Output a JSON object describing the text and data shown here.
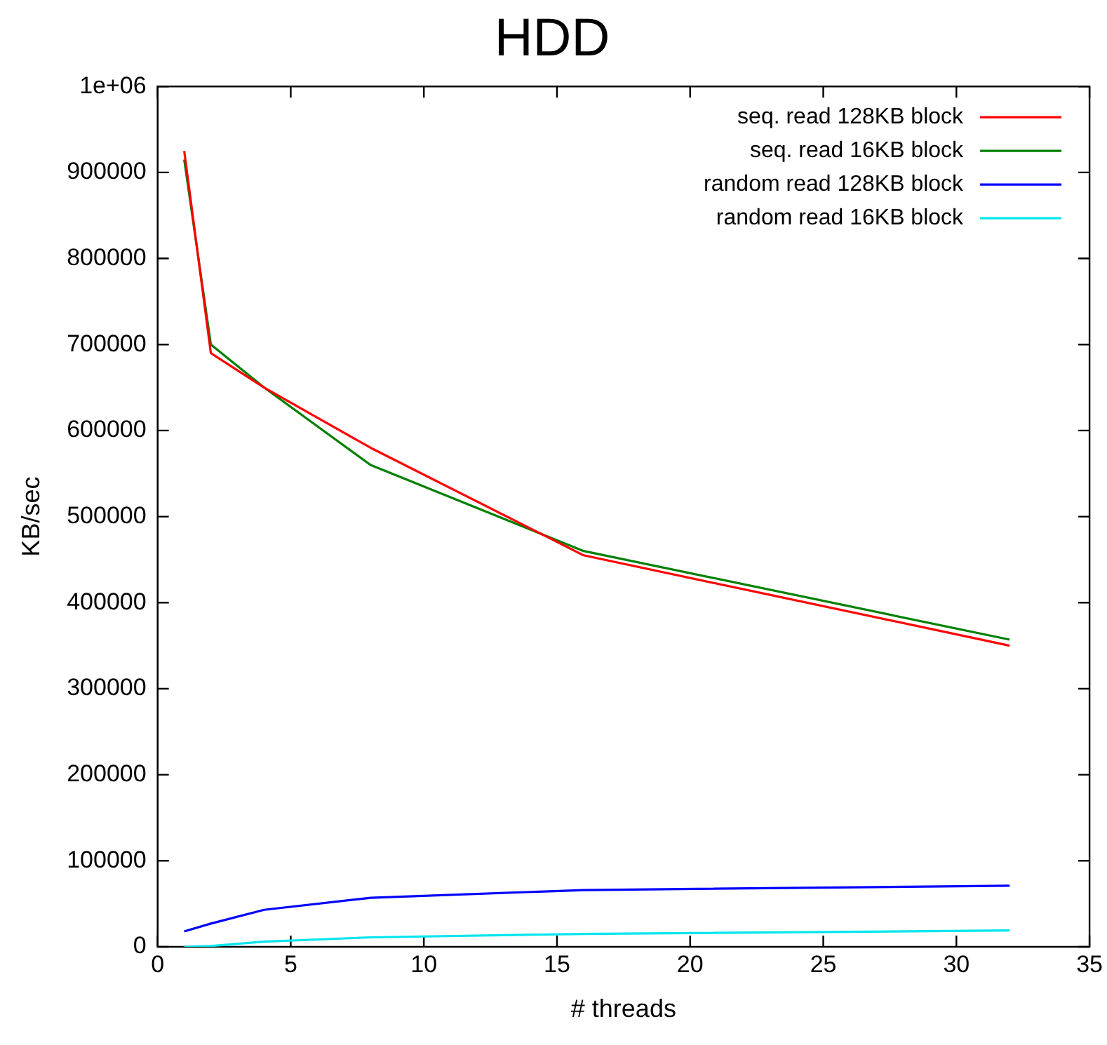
{
  "chart_data": {
    "type": "line",
    "title": "HDD",
    "xlabel": "# threads",
    "ylabel": "KB/sec",
    "x": [
      1,
      2,
      4,
      8,
      16,
      32
    ],
    "series": [
      {
        "name": "seq. read 128KB block",
        "color": "#ff0000",
        "values": [
          925000,
          690000,
          650000,
          580000,
          455000,
          350000
        ]
      },
      {
        "name": "seq. read 16KB block",
        "color": "#008000",
        "values": [
          915000,
          700000,
          650000,
          560000,
          460000,
          357000
        ]
      },
      {
        "name": "random read 128KB block",
        "color": "#0000ff",
        "values": [
          18000,
          27000,
          43000,
          57000,
          66000,
          71000
        ]
      },
      {
        "name": "random read 16KB block",
        "color": "#00e5ee",
        "values": [
          0,
          1000,
          6000,
          11000,
          15000,
          19000
        ]
      }
    ],
    "xlim": [
      0,
      35
    ],
    "xticks": [
      0,
      5,
      10,
      15,
      20,
      25,
      30,
      35
    ],
    "ylim": [
      0,
      1000000
    ],
    "yticks": [
      0,
      100000,
      200000,
      300000,
      400000,
      500000,
      600000,
      700000,
      800000,
      900000,
      {
        "value": 1000000,
        "label": "1e+06"
      }
    ],
    "grid": false,
    "legend": "top right",
    "marker": "none",
    "line_style": "solid"
  }
}
